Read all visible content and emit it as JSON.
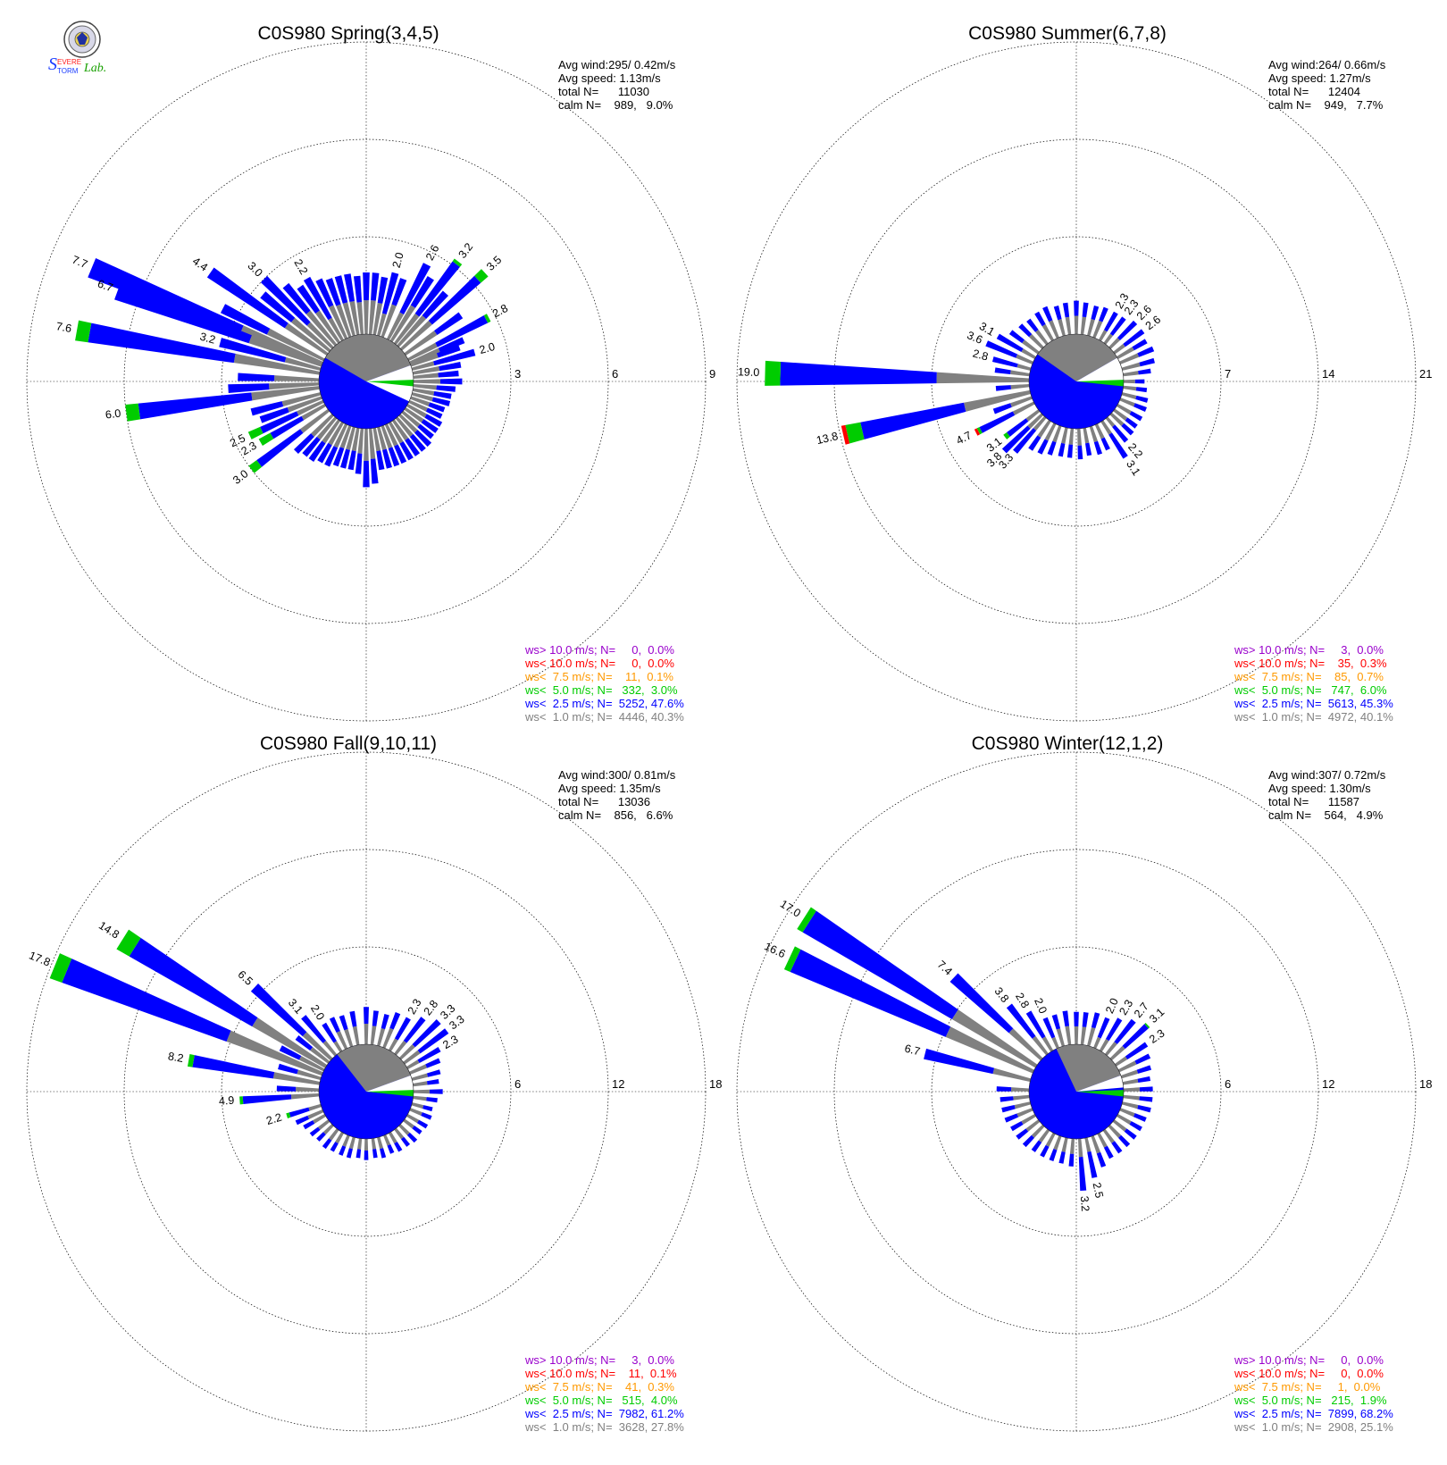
{
  "logo": {
    "lettering": "Severe Storm Lab.",
    "colors": {
      "s1": "#1a3cff",
      "s2": "#ff2020",
      "lab": "#18a000"
    }
  },
  "legend_colors": {
    "gt10": "#9900cc",
    "lt10": "#ff0000",
    "lt7_5": "#ff9900",
    "lt5": "#00cc00",
    "lt2_5": "#0000ff",
    "lt1": "#808080"
  },
  "chart_data": [
    {
      "type": "windrose",
      "title": "C0S980 Spring(3,4,5)",
      "stats": [
        "Avg wind:295/ 0.42m/s",
        "Avg speed: 1.13m/s",
        "total N=      11030",
        "calm N=    989,   9.0%"
      ],
      "rings": [
        3,
        6,
        9
      ],
      "ring_labels": [
        "3",
        "6",
        "9"
      ],
      "calm_percent": 9.0,
      "petals": [
        {
          "dir": 280.0,
          "pct": 7.6,
          "label": "7.6",
          "green": 0.4
        },
        {
          "dir": 292.5,
          "pct": 7.7,
          "label": "7.7",
          "green": 0.0
        },
        {
          "dir": 290.0,
          "pct": 6.7,
          "label": "6.7",
          "green": 0.0
        },
        {
          "dir": 262.5,
          "pct": 6.0,
          "label": "6.0",
          "green": 0.4
        },
        {
          "dir": 305.0,
          "pct": 4.4,
          "label": "4.4",
          "green": 0.0
        },
        {
          "dir": 285.0,
          "pct": 3.2,
          "label": "3.2",
          "green": 0.0
        },
        {
          "dir": 315.0,
          "pct": 3.0,
          "label": "3.0",
          "green": 0.0
        },
        {
          "dir": 232.5,
          "pct": 3.0,
          "label": "3.0",
          "green": 0.3
        },
        {
          "dir": 330.0,
          "pct": 2.2,
          "label": "2.2",
          "green": 0.0
        },
        {
          "dir": 245.0,
          "pct": 2.5,
          "label": "2.5",
          "green": 0.4
        },
        {
          "dir": 240.0,
          "pct": 2.3,
          "label": "2.3",
          "green": 0.4
        },
        {
          "dir": 15.0,
          "pct": 2.0,
          "label": "2.0",
          "green": 0.0
        },
        {
          "dir": 27.5,
          "pct": 2.6,
          "label": "2.6",
          "green": 0.0
        },
        {
          "dir": 37.5,
          "pct": 3.2,
          "label": "3.2",
          "green": 0.1
        },
        {
          "dir": 47.5,
          "pct": 3.5,
          "label": "3.5",
          "green": 0.3
        },
        {
          "dir": 62.5,
          "pct": 2.8,
          "label": "2.8",
          "green": 0.1
        },
        {
          "dir": 75.0,
          "pct": 2.0,
          "label": "2.0",
          "green": 0.0
        }
      ],
      "bg_petals": {
        "dirs": [
          0,
          5,
          10,
          20,
          32,
          42,
          55,
          67,
          70,
          80,
          85,
          90,
          95,
          100,
          105,
          110,
          115,
          120,
          125,
          130,
          135,
          140,
          145,
          150,
          155,
          160,
          165,
          170,
          175,
          180,
          185,
          190,
          195,
          200,
          205,
          210,
          215,
          220,
          225,
          250,
          255,
          267,
          272,
          297,
          310,
          320,
          325,
          335,
          340,
          345,
          350,
          355
        ],
        "pcts": [
          1.9,
          1.9,
          1.8,
          1.9,
          2.3,
          2.2,
          2.1,
          1.8,
          1.6,
          1.5,
          1.4,
          1.5,
          1.3,
          1.2,
          1.2,
          1.1,
          1.1,
          1.2,
          1.2,
          1.2,
          1.3,
          1.3,
          1.3,
          1.3,
          1.3,
          1.3,
          1.3,
          1.3,
          1.7,
          1.8,
          1.4,
          1.3,
          1.3,
          1.3,
          1.4,
          1.4,
          1.5,
          1.5,
          1.6,
          2.0,
          2.2,
          2.8,
          2.5,
          3.5,
          2.7,
          2.4,
          2.1,
          2.0,
          1.9,
          1.9,
          1.9,
          1.8
        ]
      },
      "calm_wedge": {
        "white_from": 70,
        "white_to": 115,
        "grey_from": 300,
        "grey_to": 70
      },
      "legend": [
        {
          "text": "ws> 10.0 m/s; N=     0,  0.0%",
          "color": "gt10"
        },
        {
          "text": "ws< 10.0 m/s; N=     0,  0.0%",
          "color": "lt10"
        },
        {
          "text": "ws<  7.5 m/s; N=    11,  0.1%",
          "color": "lt7_5"
        },
        {
          "text": "ws<  5.0 m/s; N=   332,  3.0%",
          "color": "lt5"
        },
        {
          "text": "ws<  2.5 m/s; N=  5252, 47.6%",
          "color": "lt2_5"
        },
        {
          "text": "ws<  1.0 m/s; N=  4446, 40.3%",
          "color": "lt1"
        }
      ]
    },
    {
      "type": "windrose",
      "title": "C0S980 Summer(6,7,8)",
      "stats": [
        "Avg wind:264/ 0.66m/s",
        "Avg speed: 1.27m/s",
        "total N=      12404",
        "calm N=    949,   7.7%"
      ],
      "rings": [
        7,
        14,
        21
      ],
      "ring_labels": [
        "7",
        "14",
        "21"
      ],
      "calm_percent": 7.7,
      "petals": [
        {
          "dir": 271.5,
          "pct": 19.0,
          "label": "19.0",
          "green": 1.1
        },
        {
          "dir": 257.0,
          "pct": 13.8,
          "label": "13.8",
          "green": 1.1,
          "red": 0.3
        },
        {
          "dir": 293.0,
          "pct": 3.6,
          "label": "3.6",
          "green": 0.0
        },
        {
          "dir": 300.0,
          "pct": 3.1,
          "label": "3.1",
          "green": 0.0
        },
        {
          "dir": 285.0,
          "pct": 2.8,
          "label": "2.8",
          "green": 0.0
        },
        {
          "dir": 243.0,
          "pct": 4.7,
          "label": "4.7",
          "green": 0.2,
          "red": 0.2
        },
        {
          "dir": 232.0,
          "pct": 3.1,
          "label": "3.1",
          "green": 0.3
        },
        {
          "dir": 226.0,
          "pct": 3.8,
          "label": "3.8",
          "green": 0.0
        },
        {
          "dir": 221.0,
          "pct": 3.3,
          "label": "3.3",
          "green": 0.0
        },
        {
          "dir": 30.0,
          "pct": 2.3,
          "label": "2.3",
          "green": 0.0
        },
        {
          "dir": 37.0,
          "pct": 2.3,
          "label": "2.3",
          "green": 0.0
        },
        {
          "dir": 45.0,
          "pct": 2.6,
          "label": "2.6",
          "green": 0.0
        },
        {
          "dir": 53.0,
          "pct": 2.6,
          "label": "2.6",
          "green": 0.0
        },
        {
          "dir": 140.0,
          "pct": 2.2,
          "label": "2.2",
          "green": 0.0
        },
        {
          "dir": 147.0,
          "pct": 3.1,
          "label": "3.1",
          "green": 0.0
        }
      ],
      "bg_petals": {
        "dirs": [
          0,
          7,
          15,
          22,
          60,
          67,
          75,
          82,
          90,
          97,
          105,
          112,
          120,
          127,
          133,
          155,
          162,
          170,
          177,
          185,
          192,
          200,
          207,
          214,
          250,
          265,
          278,
          307,
          315,
          322,
          330,
          337,
          345,
          352
        ],
        "pcts": [
          2.4,
          2.3,
          2.2,
          2.3,
          2.4,
          2.6,
          2.4,
          2.0,
          1.5,
          1.7,
          1.9,
          2.0,
          2.0,
          2.0,
          2.1,
          2.0,
          2.1,
          2.0,
          2.2,
          2.1,
          2.1,
          2.2,
          2.4,
          2.5,
          2.9,
          2.4,
          2.5,
          2.5,
          2.3,
          2.2,
          2.3,
          2.4,
          2.2,
          2.3
        ]
      },
      "calm_wedge": {
        "white_from": 60,
        "white_to": 90,
        "grey_from": 305,
        "grey_to": 60
      },
      "legend": [
        {
          "text": "ws> 10.0 m/s; N=     3,  0.0%",
          "color": "gt10"
        },
        {
          "text": "ws< 10.0 m/s; N=    35,  0.3%",
          "color": "lt10"
        },
        {
          "text": "ws<  7.5 m/s; N=    85,  0.7%",
          "color": "lt7_5"
        },
        {
          "text": "ws<  5.0 m/s; N=   747,  6.0%",
          "color": "lt5"
        },
        {
          "text": "ws<  2.5 m/s; N=  5613, 45.3%",
          "color": "lt2_5"
        },
        {
          "text": "ws<  1.0 m/s; N=  4972, 40.1%",
          "color": "lt1"
        }
      ]
    },
    {
      "type": "windrose",
      "title": "C0S980 Fall(9,10,11)",
      "stats": [
        "Avg wind:300/ 0.81m/s",
        "Avg speed: 1.35m/s",
        "total N=      13036",
        "calm N=    856,   6.6%"
      ],
      "rings": [
        6,
        12,
        18
      ],
      "ring_labels": [
        "6",
        "12",
        "18"
      ],
      "calm_percent": 6.6,
      "petals": [
        {
          "dir": 292.0,
          "pct": 17.8,
          "label": "17.8",
          "green": 0.8
        },
        {
          "dir": 302.0,
          "pct": 14.8,
          "label": "14.8",
          "green": 0.9
        },
        {
          "dir": 313.0,
          "pct": 6.5,
          "label": "6.5",
          "green": 0.0
        },
        {
          "dir": 280.0,
          "pct": 8.2,
          "label": "8.2",
          "green": 0.3
        },
        {
          "dir": 266.0,
          "pct": 4.9,
          "label": "4.9",
          "green": 0.2
        },
        {
          "dir": 253.0,
          "pct": 2.2,
          "label": "2.2",
          "green": 0.2
        },
        {
          "dir": 320.0,
          "pct": 3.1,
          "label": "3.1",
          "green": 0.0
        },
        {
          "dir": 328.0,
          "pct": 2.0,
          "label": "2.0",
          "green": 0.0
        },
        {
          "dir": 30.0,
          "pct": 2.3,
          "label": "2.3",
          "green": 0.0
        },
        {
          "dir": 38.0,
          "pct": 2.8,
          "label": "2.8",
          "green": 0.0
        },
        {
          "dir": 46.0,
          "pct": 3.3,
          "label": "3.3",
          "green": 0.0
        },
        {
          "dir": 53.0,
          "pct": 3.3,
          "label": "3.3",
          "green": 0.0
        },
        {
          "dir": 60.0,
          "pct": 2.3,
          "label": "2.3",
          "green": 0.0
        }
      ],
      "bg_petals": {
        "dirs": [
          0,
          7,
          15,
          22,
          67,
          75,
          82,
          90,
          97,
          105,
          112,
          120,
          127,
          135,
          142,
          150,
          157,
          165,
          172,
          180,
          187,
          195,
          202,
          210,
          217,
          225,
          232,
          240,
          246,
          272,
          286,
          297,
          308,
          335,
          342,
          350
        ],
        "pcts": [
          2.3,
          2.1,
          2.0,
          2.3,
          2.0,
          1.8,
          1.6,
          1.8,
          1.5,
          1.3,
          1.4,
          1.4,
          1.3,
          1.4,
          1.3,
          1.3,
          1.2,
          1.3,
          1.2,
          1.3,
          1.2,
          1.3,
          1.3,
          1.3,
          1.4,
          1.3,
          1.4,
          1.5,
          1.8,
          2.6,
          2.7,
          3.0,
          2.5,
          2.1,
          2.0,
          2.1
        ]
      },
      "calm_wedge": {
        "white_from": 70,
        "white_to": 95,
        "grey_from": 322,
        "grey_to": 70
      },
      "legend": [
        {
          "text": "ws> 10.0 m/s; N=     3,  0.0%",
          "color": "gt10"
        },
        {
          "text": "ws< 10.0 m/s; N=    11,  0.1%",
          "color": "lt10"
        },
        {
          "text": "ws<  7.5 m/s; N=    41,  0.3%",
          "color": "lt7_5"
        },
        {
          "text": "ws<  5.0 m/s; N=   515,  4.0%",
          "color": "lt5"
        },
        {
          "text": "ws<  2.5 m/s; N=  7982, 61.2%",
          "color": "lt2_5"
        },
        {
          "text": "ws<  1.0 m/s; N=  3628, 27.8%",
          "color": "lt1"
        }
      ]
    },
    {
      "type": "windrose",
      "title": "C0S980 Winter(12,1,2)",
      "stats": [
        "Avg wind:307/ 0.72m/s",
        "Avg speed: 1.30m/s",
        "total N=      11587",
        "calm N=    564,   4.9%"
      ],
      "rings": [
        6,
        12,
        18
      ],
      "ring_labels": [
        "6",
        "12",
        "18"
      ],
      "calm_percent": 4.9,
      "petals": [
        {
          "dir": 302.5,
          "pct": 17.0,
          "label": "17.0",
          "green": 0.4
        },
        {
          "dir": 295.0,
          "pct": 16.6,
          "label": "16.6",
          "green": 0.4
        },
        {
          "dir": 313.0,
          "pct": 7.4,
          "label": "7.4",
          "green": 0.0
        },
        {
          "dir": 284.0,
          "pct": 6.7,
          "label": "6.7",
          "green": 0.0
        },
        {
          "dir": 322.0,
          "pct": 3.8,
          "label": "3.8",
          "green": 0.0
        },
        {
          "dir": 329.0,
          "pct": 2.8,
          "label": "2.8",
          "green": 0.0
        },
        {
          "dir": 337.0,
          "pct": 2.0,
          "label": "2.0",
          "green": 0.0
        },
        {
          "dir": 23.0,
          "pct": 2.0,
          "label": "2.0",
          "green": 0.0
        },
        {
          "dir": 31.0,
          "pct": 2.3,
          "label": "2.3",
          "green": 0.0
        },
        {
          "dir": 39.0,
          "pct": 2.7,
          "label": "2.7",
          "green": 0.0
        },
        {
          "dir": 47.0,
          "pct": 3.1,
          "label": "3.1",
          "green": 0.1
        },
        {
          "dir": 56.0,
          "pct": 2.3,
          "label": "2.3",
          "green": 0.0
        },
        {
          "dir": 176.0,
          "pct": 3.2,
          "label": "3.2",
          "green": 0.0
        },
        {
          "dir": 168.0,
          "pct": 2.5,
          "label": "2.5",
          "green": 0.0
        }
      ],
      "bg_petals": {
        "dirs": [
          0,
          7,
          15,
          64,
          72,
          80,
          88,
          96,
          104,
          112,
          120,
          128,
          136,
          144,
          152,
          160,
          184,
          192,
          200,
          208,
          216,
          224,
          232,
          240,
          248,
          256,
          264,
          272,
          344,
          352
        ],
        "pcts": [
          2.0,
          2.0,
          2.1,
          2.1,
          1.9,
          1.7,
          1.8,
          1.8,
          1.8,
          1.7,
          1.7,
          1.7,
          1.7,
          1.7,
          1.7,
          2.0,
          1.7,
          1.6,
          1.6,
          1.6,
          1.6,
          1.7,
          1.7,
          1.7,
          1.8,
          1.8,
          1.8,
          2.0,
          2.0,
          2.1
        ]
      },
      "calm_wedge": {
        "white_from": 70,
        "white_to": 85,
        "grey_from": 335,
        "grey_to": 70
      },
      "legend": [
        {
          "text": "ws> 10.0 m/s; N=     0,  0.0%",
          "color": "gt10"
        },
        {
          "text": "ws< 10.0 m/s; N=     0,  0.0%",
          "color": "lt10"
        },
        {
          "text": "ws<  7.5 m/s; N=     1,  0.0%",
          "color": "lt7_5"
        },
        {
          "text": "ws<  5.0 m/s; N=   215,  1.9%",
          "color": "lt5"
        },
        {
          "text": "ws<  2.5 m/s; N=  7899, 68.2%",
          "color": "lt2_5"
        },
        {
          "text": "ws<  1.0 m/s; N=  2908, 25.1%",
          "color": "lt1"
        }
      ]
    }
  ]
}
